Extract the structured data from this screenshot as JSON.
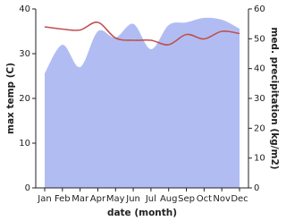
{
  "chart_data": {
    "type": "area-line",
    "categories": [
      "Jan",
      "Feb",
      "Mar",
      "Apr",
      "May",
      "Jun",
      "Jul",
      "Aug",
      "Sep",
      "Oct",
      "Nov",
      "Dec"
    ],
    "series": [
      {
        "name": "max temp (C)",
        "type": "line",
        "color": "#c0504d",
        "values": [
          36,
          35.5,
          35.3,
          37,
          33.5,
          33,
          33,
          32,
          34.3,
          33.3,
          35,
          34.5
        ]
      },
      {
        "name": "med. precipitation (kg/m2)",
        "type": "area",
        "axis": "y2",
        "color": "#b1bdf2",
        "values": [
          38.4,
          48,
          40.5,
          52.5,
          50.4,
          55,
          46.5,
          54.6,
          55.5,
          57,
          56.4,
          53.4
        ]
      }
    ],
    "ylabel": "max temp (C)",
    "y2label": "med. precipitation (kg/m2)",
    "xlabel": "date (month)",
    "ylim": [
      0,
      40
    ],
    "yticks": [
      0,
      10,
      20,
      30,
      40
    ],
    "y2lim": [
      0,
      60
    ],
    "y2ticks": [
      0,
      10,
      20,
      30,
      40,
      50,
      60
    ]
  }
}
